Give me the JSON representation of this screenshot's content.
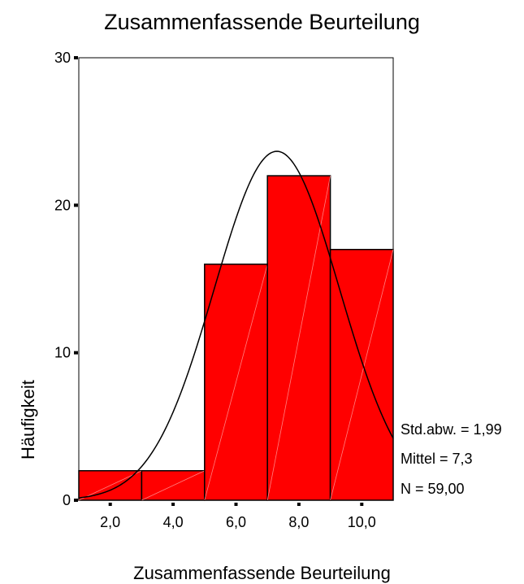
{
  "chart_data": {
    "type": "bar",
    "title": "Zusammenfassende Beurteilung",
    "xlabel": "Zusammenfassende Beurteilung",
    "ylabel": "Häufigkeit",
    "bins": [
      {
        "from": 1,
        "to": 3,
        "value": 2
      },
      {
        "from": 3,
        "to": 5,
        "value": 2
      },
      {
        "from": 5,
        "to": 7,
        "value": 16
      },
      {
        "from": 7,
        "to": 9,
        "value": 22
      },
      {
        "from": 9,
        "to": 11,
        "value": 17
      }
    ],
    "xlim": [
      1,
      11
    ],
    "ylim": [
      0,
      30
    ],
    "x_ticks": [
      {
        "value": 2,
        "label": "2,0"
      },
      {
        "value": 4,
        "label": "4,0"
      },
      {
        "value": 6,
        "label": "6,0"
      },
      {
        "value": 8,
        "label": "8,0"
      },
      {
        "value": 10,
        "label": "10,0"
      }
    ],
    "y_ticks": [
      {
        "value": 0,
        "label": "0"
      },
      {
        "value": 10,
        "label": "10"
      },
      {
        "value": 20,
        "label": "20"
      },
      {
        "value": 30,
        "label": "30"
      }
    ],
    "normal_curve": {
      "mean": 7.3,
      "sd": 1.99,
      "n": 59,
      "bin_width": 2
    },
    "stats": [
      {
        "label": "Std.abw. = 1,99"
      },
      {
        "label": "Mittel = 7,3"
      },
      {
        "label": "N = 59,00"
      }
    ],
    "bar_color": "#ff0000",
    "grid": false
  }
}
